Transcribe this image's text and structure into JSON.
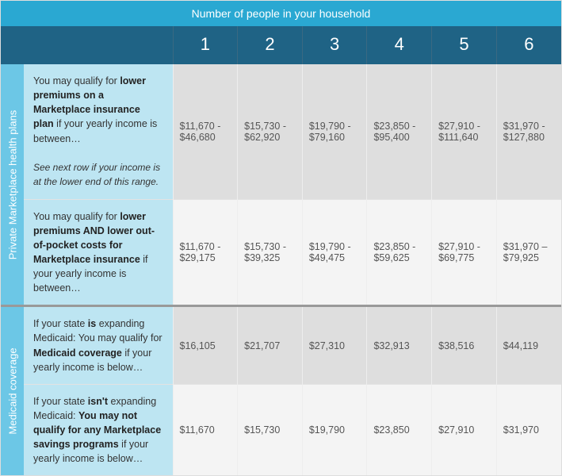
{
  "colors": {
    "topbar_bg": "#2aa8d2",
    "header_bg": "#1f6385",
    "side_private_bg": "#6cc7e6",
    "side_medicaid_bg": "#6cc7e6",
    "desc_bg_private": "#bde5f2",
    "desc_bg_medicaid": "#bde5f2",
    "row_a_bg": "#dedede",
    "row_b_bg": "#f4f4f4",
    "border_gray": "#e3e3e3"
  },
  "header": {
    "title": "Number of people in your household",
    "cols": [
      "1",
      "2",
      "3",
      "4",
      "5",
      "6"
    ]
  },
  "sections": [
    {
      "side": "Private Marketplace health plans",
      "rows": [
        {
          "desc_pre": "You may qualify for ",
          "desc_bold": "lower premiums on a Marketplace insurance plan",
          "desc_post": " if your yearly income is between…",
          "footnote": "See next row if your income is at the lower end of this range.",
          "vals": [
            "$11,670 - $46,680",
            "$15,730 - $62,920",
            "$19,790 - $79,160",
            "$23,850 - $95,400",
            "$27,910 - $111,640",
            "$31,970 - $127,880"
          ]
        },
        {
          "desc_pre": "You may qualify for ",
          "desc_bold": "lower premiums AND lower out-of-pocket costs for Marketplace insurance",
          "desc_post": " if your yearly income is between…",
          "footnote": "",
          "vals": [
            "$11,670 - $29,175",
            "$15,730 - $39,325",
            "$19,790 - $49,475",
            "$23,850 - $59,625",
            "$27,910 - $69,775",
            "$31,970 – $79,925"
          ]
        }
      ]
    },
    {
      "side": "Medicaid coverage",
      "rows": [
        {
          "desc_pre": "If your state ",
          "desc_bold_pre": "is",
          "desc_mid": " expanding Medicaid: You may qualify for ",
          "desc_bold": "Medicaid coverage",
          "desc_post": " if your yearly income is below…",
          "footnote": "",
          "vals": [
            "$16,105",
            "$21,707",
            "$27,310",
            "$32,913",
            "$38,516",
            "$44,119"
          ]
        },
        {
          "desc_pre": "If your state ",
          "desc_bold_pre": "isn't",
          "desc_mid": " expanding Medicaid: ",
          "desc_bold": "You may not qualify for any Marketplace savings programs",
          "desc_post": " if your yearly income is below…",
          "footnote": "",
          "vals": [
            "$11,670",
            "$15,730",
            "$19,790",
            "$23,850",
            "$27,910",
            "$31,970"
          ]
        }
      ]
    }
  ]
}
